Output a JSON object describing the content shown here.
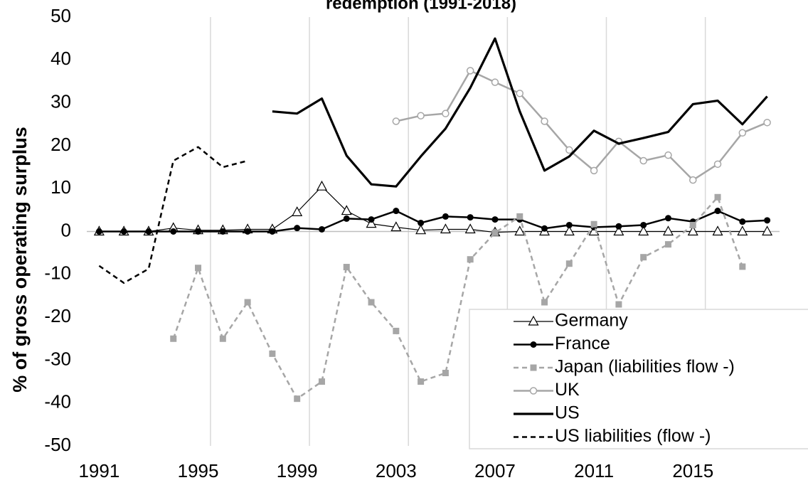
{
  "chart_data": {
    "type": "line",
    "title": "redemption (1991-2018)",
    "y_label": "% of gross operating surplus",
    "categories": [
      "1991",
      null,
      null,
      null,
      "1995",
      null,
      null,
      null,
      "1999",
      null,
      null,
      null,
      "2003",
      null,
      null,
      null,
      "2007",
      null,
      null,
      null,
      "2011",
      null,
      null,
      null,
      "2015",
      null,
      null,
      null
    ],
    "ylim": [
      -50,
      50
    ],
    "yticks": [
      -50,
      -40,
      -30,
      -20,
      -10,
      0,
      10,
      20,
      30,
      40,
      50
    ],
    "legend": "bottom-right",
    "series": [
      {
        "name": "Germany",
        "color": "#000000",
        "width": 1.2,
        "marker": "open-triangle",
        "dashed": false,
        "values": [
          0,
          0,
          0,
          0.8,
          0.3,
          0.3,
          0.5,
          0.5,
          4.5,
          10.5,
          4.8,
          1.8,
          1,
          0.3,
          0.5,
          0.5,
          -0.2,
          0,
          0,
          0,
          0,
          0,
          0,
          0,
          0,
          0,
          0,
          0
        ]
      },
      {
        "name": "France",
        "color": "#000000",
        "width": 2.5,
        "marker": "filled-circle",
        "dashed": false,
        "values": [
          0,
          0,
          0,
          0,
          0,
          0,
          0,
          0,
          0.8,
          0.5,
          3,
          2.8,
          4.8,
          2,
          3.5,
          3.3,
          2.8,
          2.8,
          0.7,
          1.5,
          1,
          1.2,
          1.5,
          3.1,
          2.3,
          4.8,
          2.3,
          2.6
        ]
      },
      {
        "name": "Japan (liabilities flow -)",
        "color": "#a6a6a6",
        "width": 2.5,
        "marker": "filled-square",
        "dashed": true,
        "values": [
          null,
          null,
          null,
          -25,
          -8.5,
          -25,
          -16.5,
          -28.5,
          -39,
          -35,
          -8.3,
          -16.5,
          -23.2,
          -35,
          -33,
          -6.5,
          -0.3,
          3.5,
          -16.5,
          -7.5,
          1.7,
          -17,
          -6,
          -3,
          1.5,
          8,
          -8.2,
          null
        ]
      },
      {
        "name": "UK",
        "color": "#a6a6a6",
        "width": 2.5,
        "marker": "open-circle",
        "dashed": false,
        "values": [
          null,
          null,
          null,
          null,
          null,
          null,
          null,
          null,
          null,
          null,
          null,
          null,
          25.7,
          27,
          27.5,
          37.5,
          34.8,
          32.2,
          25.7,
          19,
          14.2,
          21,
          16.5,
          17.8,
          12,
          15.7,
          23,
          25.4
        ]
      },
      {
        "name": "US",
        "color": "#000000",
        "width": 3.2,
        "marker": "none",
        "dashed": false,
        "values": [
          null,
          null,
          null,
          null,
          null,
          null,
          null,
          28,
          27.5,
          31,
          17.7,
          11,
          10.5,
          17.5,
          24,
          33.5,
          45,
          28,
          14.2,
          17.5,
          23.5,
          20.5,
          21.8,
          23.2,
          29.7,
          30.5,
          25,
          31.5
        ]
      },
      {
        "name": "US liabilities (flow -)",
        "color": "#000000",
        "width": 2.5,
        "marker": "none",
        "dashed": true,
        "values": [
          -8,
          -12,
          -8.7,
          16.5,
          19.7,
          15,
          16.5,
          null,
          null,
          null,
          null,
          null,
          null,
          null,
          null,
          null,
          null,
          null,
          null,
          null,
          null,
          null,
          null,
          null,
          null,
          null,
          null,
          null
        ]
      }
    ]
  }
}
